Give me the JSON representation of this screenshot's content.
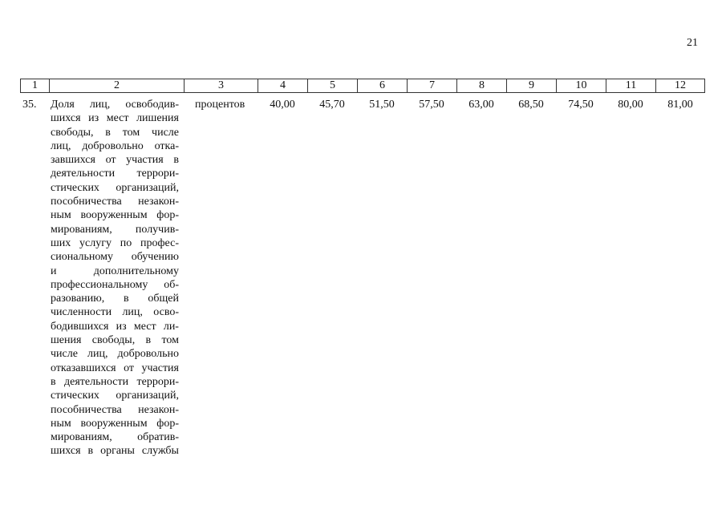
{
  "page_number": "21",
  "header": [
    "1",
    "2",
    "3",
    "4",
    "5",
    "6",
    "7",
    "8",
    "9",
    "10",
    "11",
    "12"
  ],
  "row": {
    "number": "35.",
    "description_lines": [
      "Доля лиц, освободив-",
      "шихся из мест лишения",
      "свободы, в том числе",
      "лиц, добровольно отка-",
      "завшихся от участия в",
      "деятельности террори-",
      "стических организаций,",
      "пособничества незакон-",
      "ным вооруженным фор-",
      "мированиям, получив-",
      "ших услугу по профес-",
      "сиональному обучению",
      "и дополнительному",
      "профессиональному об-",
      "разованию, в общей",
      "численности лиц, осво-",
      "бодившихся из мест ли-",
      "шения свободы, в том",
      "числе лиц, добровольно",
      "отказавшихся от участия",
      "в деятельности террори-",
      "стических организаций,",
      "пособничества незакон-",
      "ным вооруженным фор-",
      "мированиям, обратив-",
      "шихся в органы службы"
    ],
    "unit": "процентов",
    "values": [
      "40,00",
      "45,70",
      "51,50",
      "57,50",
      "63,00",
      "68,50",
      "74,50",
      "80,00",
      "81,00"
    ]
  }
}
